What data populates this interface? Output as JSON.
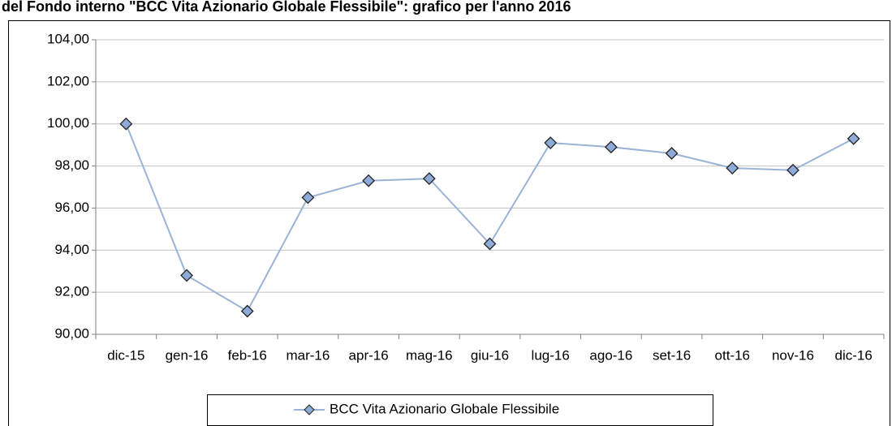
{
  "chart_data": {
    "type": "line",
    "title": "del Fondo interno \"BCC Vita Azionario Globale Flessibile\": grafico per l'anno 2016",
    "categories": [
      "dic-15",
      "gen-16",
      "feb-16",
      "mar-16",
      "apr-16",
      "mag-16",
      "giu-16",
      "lug-16",
      "ago-16",
      "set-16",
      "ott-16",
      "nov-16",
      "dic-16"
    ],
    "series": [
      {
        "name": "BCC Vita Azionario Globale Flessibile",
        "color": "#9bb3d6",
        "marker_color": "#8eaad6",
        "values": [
          100.0,
          92.8,
          91.1,
          96.5,
          97.3,
          97.4,
          94.3,
          99.1,
          98.9,
          98.6,
          97.9,
          97.8,
          99.3
        ]
      }
    ],
    "ylim": [
      90,
      104
    ],
    "yticks": [
      {
        "value": 90,
        "label": "90,00"
      },
      {
        "value": 92,
        "label": "92,00"
      },
      {
        "value": 94,
        "label": "94,00"
      },
      {
        "value": 96,
        "label": "96,00"
      },
      {
        "value": 98,
        "label": "98,00"
      },
      {
        "value": 100,
        "label": "100,00"
      },
      {
        "value": 102,
        "label": "102,00"
      },
      {
        "value": 104,
        "label": "104,00"
      }
    ],
    "grid": true,
    "legend": "bottom"
  }
}
